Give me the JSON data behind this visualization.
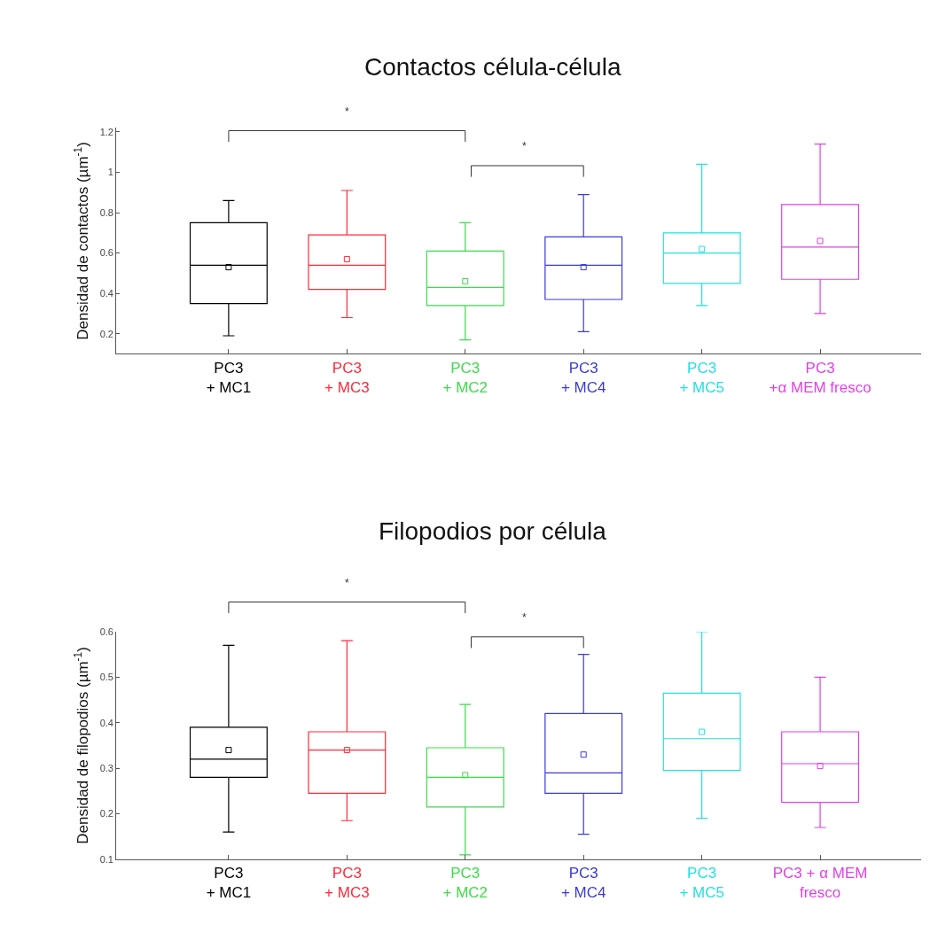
{
  "chart_data": [
    {
      "type": "box",
      "title": "Contactos célula-célula",
      "ylabel": "Densidad de contactos (µm$^{-1}$)",
      "categories": [
        "PC3\n+ MC1",
        "PC3\n+ MC3",
        "PC3\n+ MC2",
        "PC3\n+ MC4",
        "PC3\n+ MC5",
        "PC3\n+α MEM fresco"
      ],
      "colors": [
        "#000000",
        "#ff2a3a",
        "#3ddc4a",
        "#3a3ad6",
        "#22e0e6",
        "#e040e8"
      ],
      "boxes": [
        {
          "low": 0.19,
          "q1": 0.35,
          "median": 0.54,
          "q3": 0.75,
          "high": 0.86,
          "mean": 0.53
        },
        {
          "low": 0.28,
          "q1": 0.42,
          "median": 0.54,
          "q3": 0.69,
          "high": 0.91,
          "mean": 0.57
        },
        {
          "low": 0.17,
          "q1": 0.34,
          "median": 0.43,
          "q3": 0.61,
          "high": 0.75,
          "mean": 0.46
        },
        {
          "low": 0.21,
          "q1": 0.37,
          "median": 0.54,
          "q3": 0.68,
          "high": 0.89,
          "mean": 0.53
        },
        {
          "low": 0.34,
          "q1": 0.45,
          "median": 0.6,
          "q3": 0.7,
          "high": 1.04,
          "mean": 0.62
        },
        {
          "low": 0.3,
          "q1": 0.47,
          "median": 0.63,
          "q3": 0.84,
          "high": 1.14,
          "mean": 0.66
        }
      ],
      "marker": "square",
      "ylim": [
        0.1,
        1.22
      ],
      "yticks": [
        0.2,
        0.4,
        0.6,
        0.8,
        1,
        1.2
      ],
      "annotations": [
        "*",
        "*"
      ]
    },
    {
      "type": "box",
      "title": "Filopodios por célula",
      "ylabel": "Densidad de filopodios (µm$^{-1}$)",
      "categories": [
        "PC3\n+ MC1",
        "PC3\n+ MC3",
        "PC3\n+ MC2",
        "PC3\n+ MC4",
        "PC3\n+ MC5",
        "PC3 + α MEM\nfresco"
      ],
      "colors": [
        "#000000",
        "#ff2a3a",
        "#3ddc4a",
        "#3a3ad6",
        "#22e0e6",
        "#e040e8"
      ],
      "boxes": [
        {
          "low": 0.16,
          "q1": 0.28,
          "median": 0.32,
          "q3": 0.39,
          "high": 0.57,
          "mean": 0.34
        },
        {
          "low": 0.185,
          "q1": 0.245,
          "median": 0.34,
          "q3": 0.38,
          "high": 0.58,
          "mean": 0.34
        },
        {
          "low": 0.11,
          "q1": 0.215,
          "median": 0.28,
          "q3": 0.345,
          "high": 0.44,
          "mean": 0.285
        },
        {
          "low": 0.155,
          "q1": 0.245,
          "median": 0.29,
          "q3": 0.42,
          "high": 0.55,
          "mean": 0.33
        },
        {
          "low": 0.19,
          "q1": 0.295,
          "median": 0.365,
          "q3": 0.465,
          "high": 0.6,
          "mean": 0.38
        },
        {
          "low": 0.17,
          "q1": 0.225,
          "median": 0.31,
          "q3": 0.38,
          "high": 0.5,
          "mean": 0.305
        }
      ],
      "marker": "square",
      "ylim": [
        0.1,
        0.6
      ],
      "yticks": [
        0.1,
        0.2,
        0.3,
        0.4,
        0.5,
        0.6
      ],
      "annotations": [
        "*",
        "*"
      ]
    }
  ]
}
